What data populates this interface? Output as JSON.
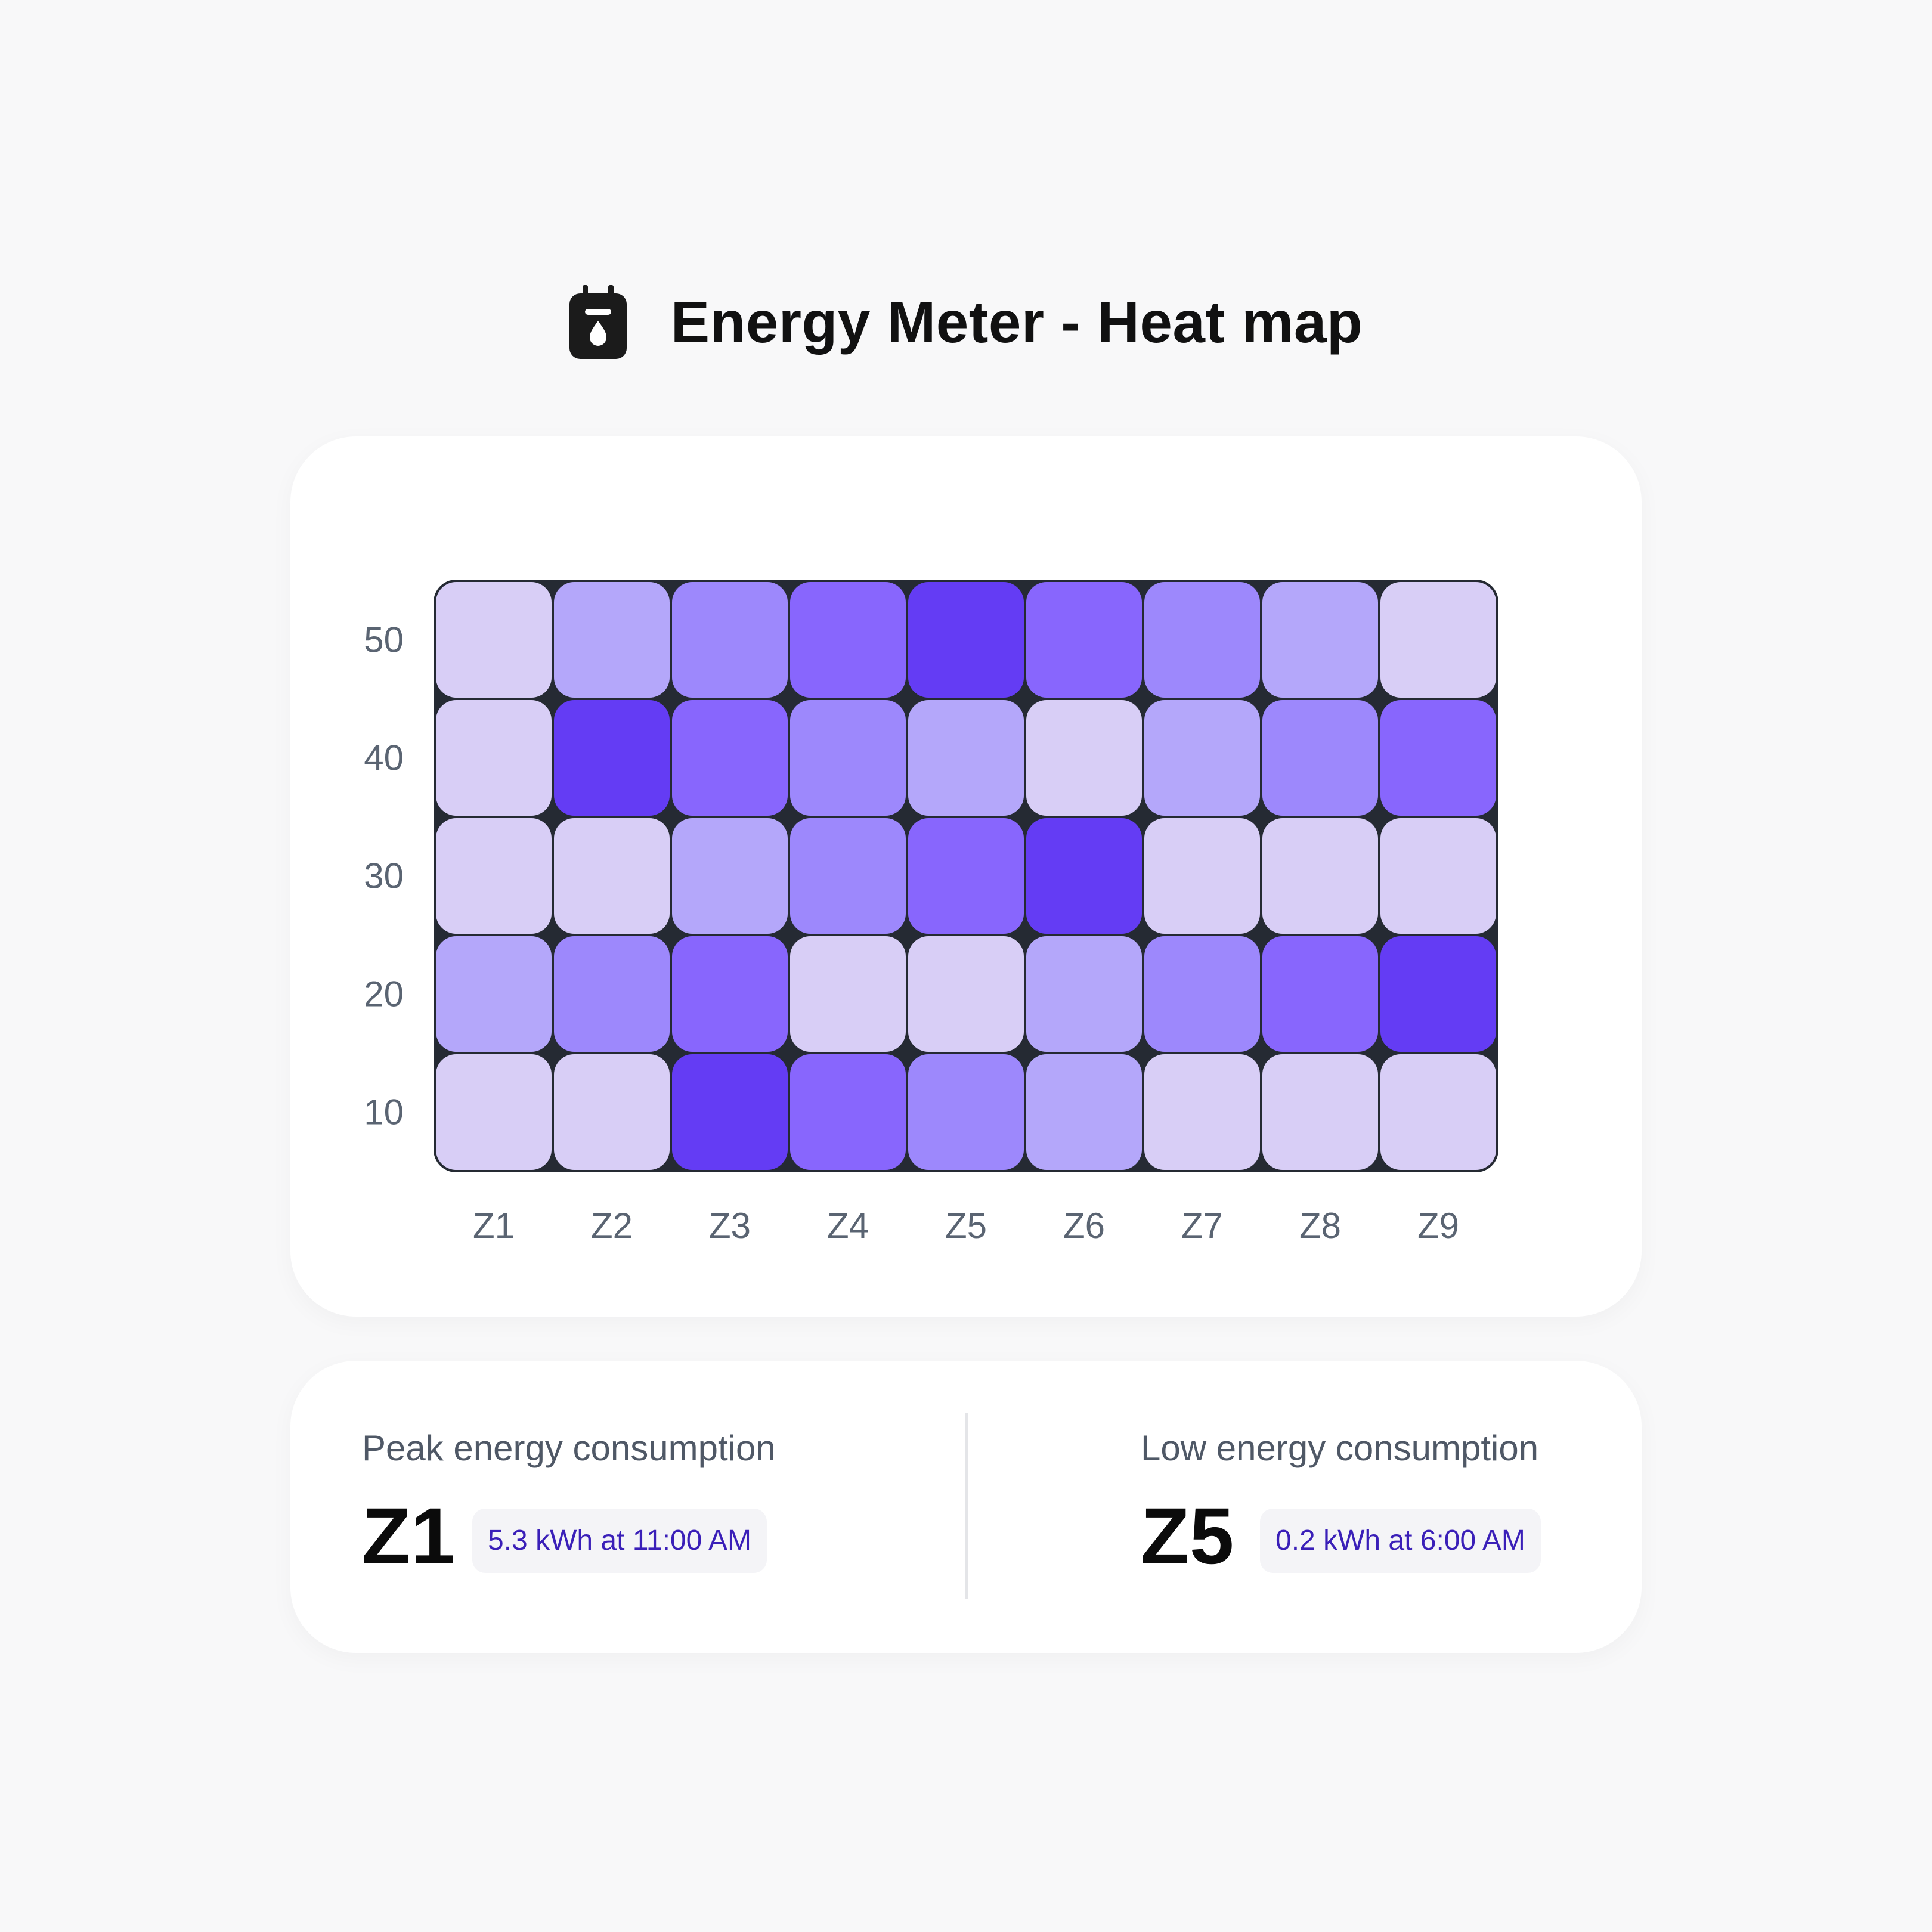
{
  "header": {
    "title": "Energy Meter - Heat map",
    "icon": "energy-meter-icon"
  },
  "chart_data": {
    "type": "heatmap",
    "x_categories": [
      "Z1",
      "Z2",
      "Z3",
      "Z4",
      "Z5",
      "Z6",
      "Z7",
      "Z8",
      "Z9"
    ],
    "y_categories": [
      "50",
      "40",
      "30",
      "20",
      "10"
    ],
    "intensity_scale": "1 (lightest) to 5 (darkest)",
    "values": [
      [
        1,
        2,
        3,
        4,
        5,
        4,
        3,
        2,
        1
      ],
      [
        1,
        5,
        4,
        3,
        2,
        1,
        2,
        3,
        4
      ],
      [
        1,
        1,
        2,
        3,
        4,
        5,
        1,
        1,
        1
      ],
      [
        2,
        3,
        4,
        1,
        1,
        2,
        3,
        4,
        5
      ],
      [
        1,
        1,
        5,
        4,
        3,
        2,
        1,
        1,
        1
      ]
    ],
    "colors": [
      "#d8cef6",
      "#b4a7fa",
      "#9d88fc",
      "#8866fd",
      "#643cf4"
    ],
    "grid_color": "#252a33"
  },
  "stats": {
    "peak": {
      "label": "Peak energy consumption",
      "zone": "Z1",
      "detail": "5.3 kWh at 11:00 AM"
    },
    "low": {
      "label": "Low energy consumption",
      "zone": "Z5",
      "detail": "0.2 kWh at 6:00 AM"
    }
  },
  "colors": {
    "background": "#f8f8f9",
    "card": "#ffffff",
    "badge_text": "#3a1fb8",
    "badge_bg": "#f4f4f7"
  }
}
